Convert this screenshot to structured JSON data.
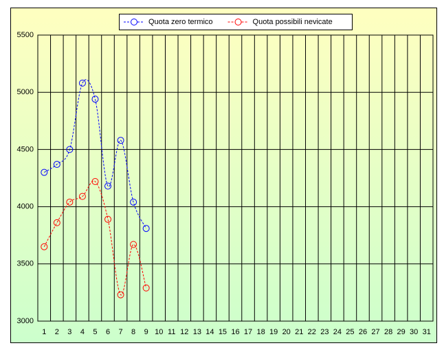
{
  "chart_data": {
    "type": "line",
    "categories": [
      "1",
      "2",
      "3",
      "4",
      "5",
      "6",
      "7",
      "8",
      "9",
      "10",
      "11",
      "12",
      "13",
      "14",
      "15",
      "16",
      "17",
      "18",
      "19",
      "20",
      "21",
      "22",
      "23",
      "24",
      "25",
      "26",
      "27",
      "28",
      "29",
      "30",
      "31"
    ],
    "series": [
      {
        "name": "Quota zero termico",
        "color": "#0000ff",
        "values": [
          4300,
          4370,
          4500,
          5080,
          4940,
          4180,
          4580,
          4040,
          3810,
          null,
          null,
          null,
          null,
          null,
          null,
          null,
          null,
          null,
          null,
          null,
          null,
          null,
          null,
          null,
          null,
          null,
          null,
          null,
          null,
          null,
          null
        ]
      },
      {
        "name": "Quota possibili nevicate",
        "color": "#ff0000",
        "values": [
          3650,
          3860,
          4040,
          4090,
          4220,
          3890,
          3230,
          3670,
          3290,
          null,
          null,
          null,
          null,
          null,
          null,
          null,
          null,
          null,
          null,
          null,
          null,
          null,
          null,
          null,
          null,
          null,
          null,
          null,
          null,
          null,
          null
        ]
      }
    ],
    "ylim": [
      3000,
      5500
    ],
    "yticks": [
      3000,
      3500,
      4000,
      4500,
      5000,
      5500
    ],
    "grid": true,
    "legend": "top"
  }
}
